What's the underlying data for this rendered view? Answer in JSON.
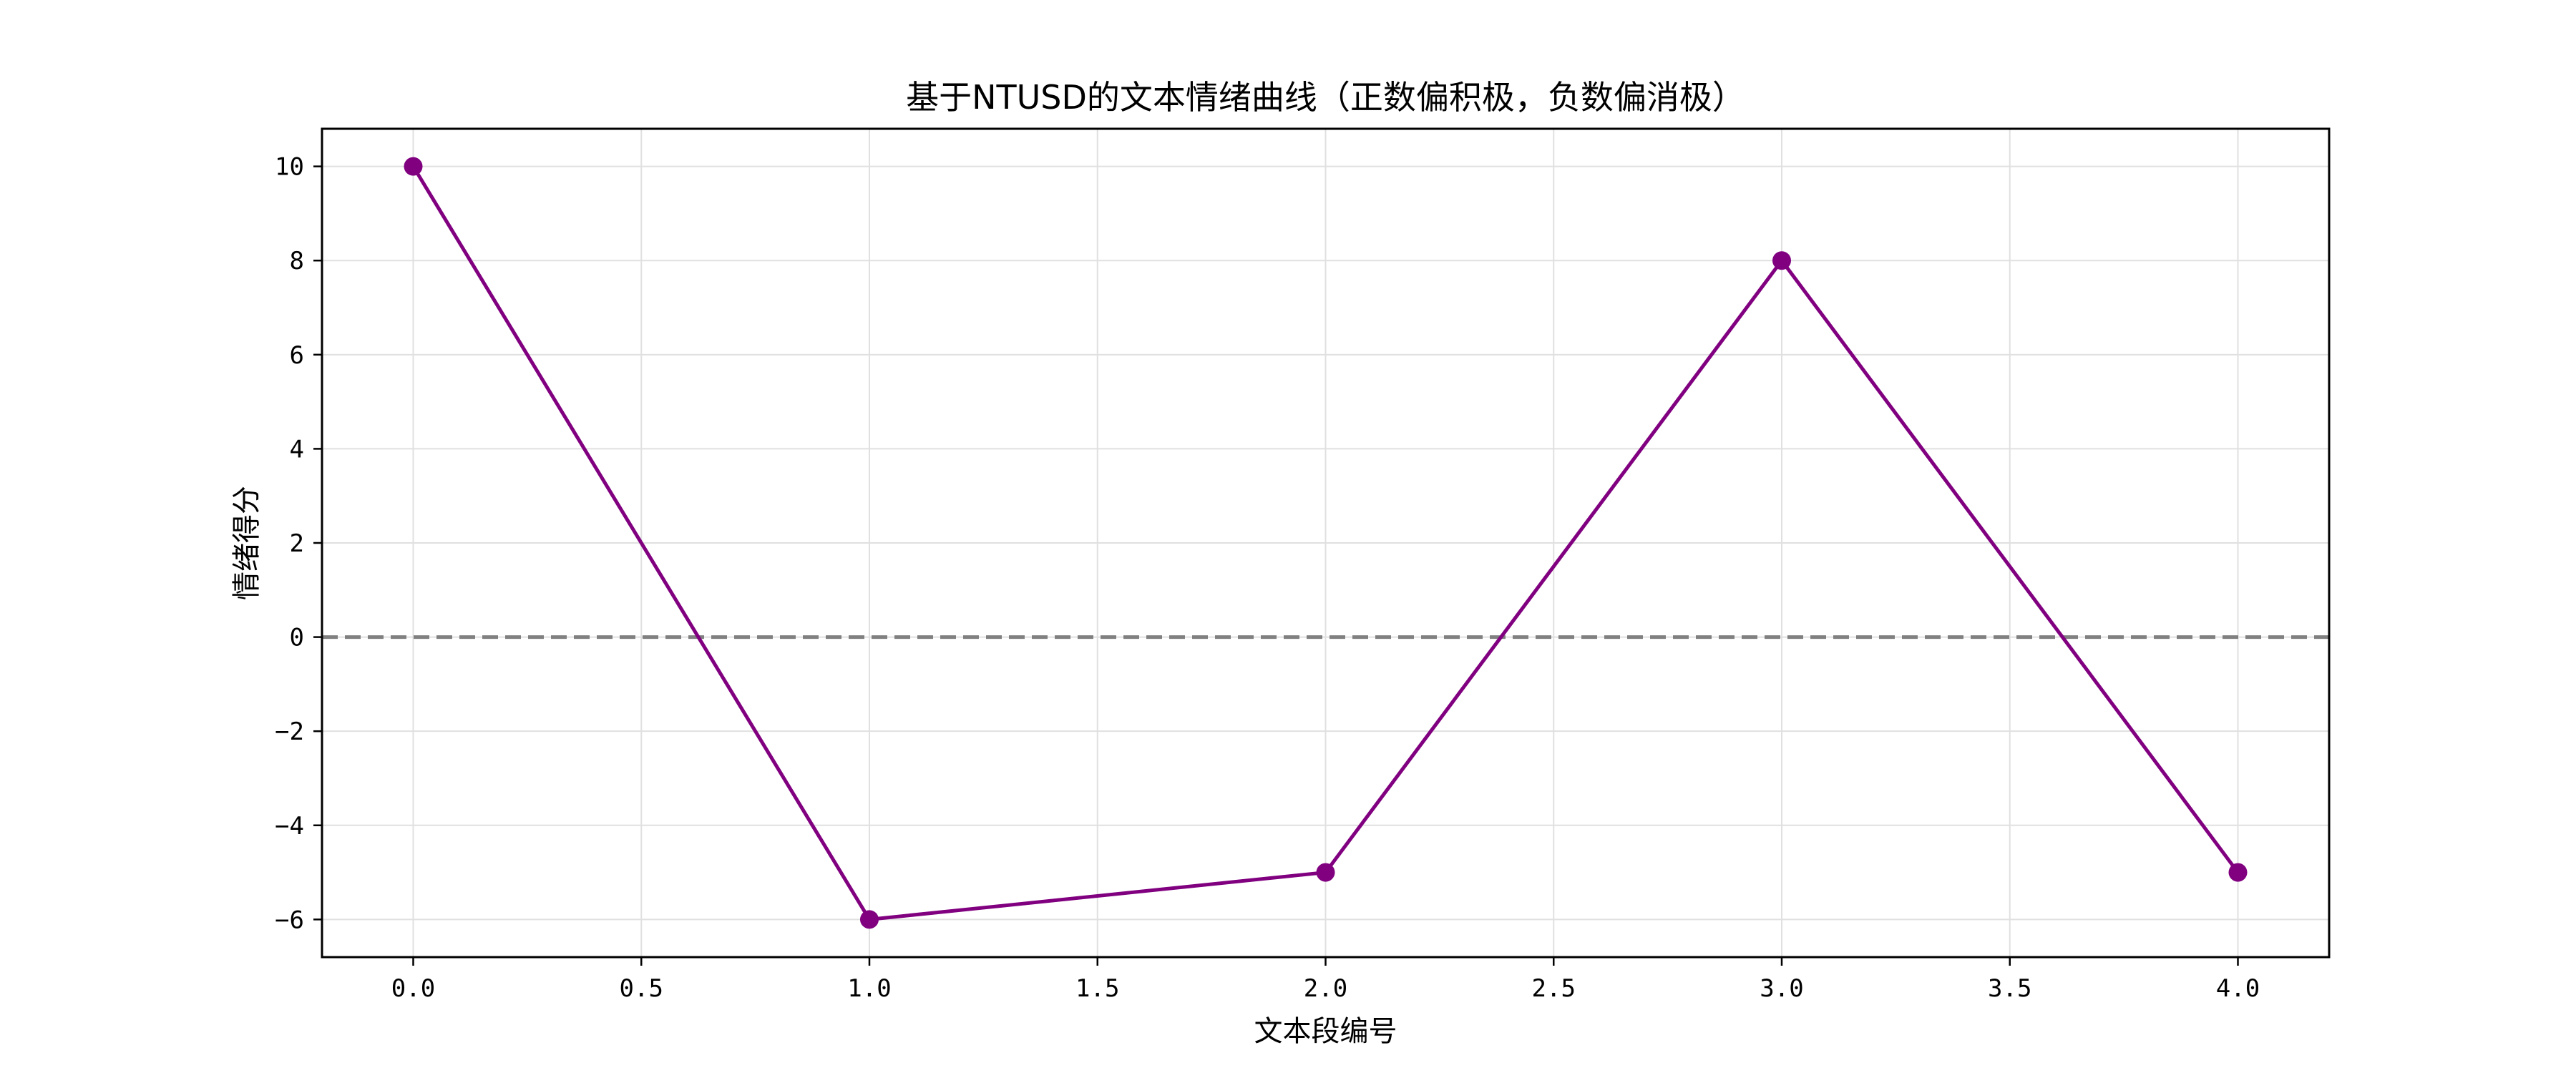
{
  "chart_data": {
    "type": "line",
    "title": "基于NTUSD的文本情绪曲线（正数偏积极，负数偏消极）",
    "xlabel": "文本段编号",
    "ylabel": "情绪得分",
    "x": [
      0,
      1,
      2,
      3,
      4
    ],
    "series": [
      {
        "values": [
          10,
          -6,
          -5,
          8,
          -5
        ],
        "color": "#800080"
      }
    ],
    "xlim": [
      -0.2,
      4.2
    ],
    "ylim": [
      -6.8,
      10.8
    ],
    "xticks": [
      0.0,
      0.5,
      1.0,
      1.5,
      2.0,
      2.5,
      3.0,
      3.5,
      4.0
    ],
    "xtick_labels": [
      "0.0",
      "0.5",
      "1.0",
      "1.5",
      "2.0",
      "2.5",
      "3.0",
      "3.5",
      "4.0"
    ],
    "yticks": [
      -6,
      -4,
      -2,
      0,
      2,
      4,
      6,
      8,
      10
    ],
    "ytick_labels": [
      "−6",
      "−4",
      "−2",
      "0",
      "2",
      "4",
      "6",
      "8",
      "10"
    ],
    "reference_line": {
      "y": 0,
      "style": "dashed",
      "color": "#808080"
    },
    "grid": true,
    "grid_color": "#e0e0e0",
    "axis_color": "#000000"
  }
}
